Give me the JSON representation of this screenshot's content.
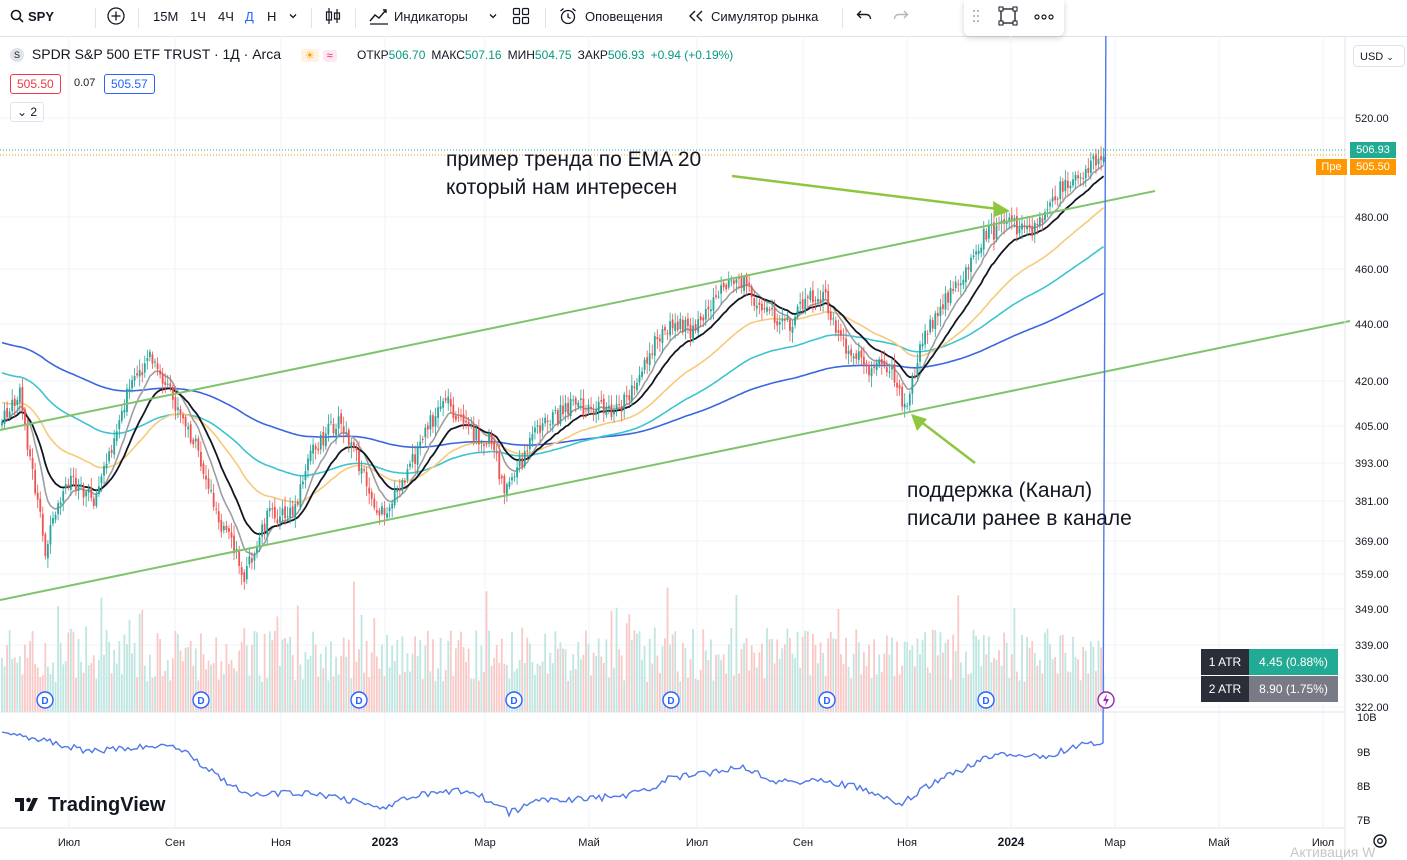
{
  "toolbar": {
    "symbol": "SPY",
    "intervals": [
      "15M",
      "1Ч",
      "4Ч",
      "Д",
      "Н"
    ],
    "active_interval": "Д",
    "indicators_label": "Индикаторы",
    "alerts_label": "Оповещения",
    "replay_label": "Симулятор рынка"
  },
  "legend": {
    "title": "SPDR S&P 500 ETF TRUST · 1Д · Arca",
    "open_label": "ОТКР",
    "open": "506.70",
    "high_label": "МАКС",
    "high": "507.16",
    "low_label": "МИН",
    "low": "504.75",
    "close_label": "ЗАКР",
    "close": "506.93",
    "change": "+0.94 (+0.19%)",
    "bid": "505.50",
    "spread": "0.07",
    "ask": "505.57",
    "indicators_count": "2"
  },
  "currency": "USD",
  "price_badges": {
    "last": "506.93",
    "pre_label": "Пре",
    "pre": "505.50"
  },
  "annotations": {
    "trend_line1": "пример тренда по EMA 20",
    "trend_line2": "который нам интересен",
    "support_line1": "поддержка (Канал)",
    "support_line2": "писали ранее в канале"
  },
  "atr": [
    {
      "label": "1 ATR",
      "value": "4.45 (0.88%)",
      "color": "#22ab94"
    },
    {
      "label": "2 ATR",
      "value": "8.90 (1.75%)",
      "color": "#787b86"
    }
  ],
  "dividend_marker": "D",
  "branding": "TradingView",
  "watermark": "Активация W",
  "chart_data": {
    "type": "candlestick",
    "title": "SPDR S&P 500 ETF TRUST · 1Д · Arca",
    "price_ticks": [
      "520.00",
      "480.00",
      "460.00",
      "440.00",
      "420.00",
      "405.00",
      "393.00",
      "381.00",
      "369.00",
      "359.00",
      "349.00",
      "339.00",
      "330.00",
      "322.00"
    ],
    "x_ticks": [
      "Июл",
      "Сен",
      "Ноя",
      "2023",
      "Мар",
      "Май",
      "Июл",
      "Сен",
      "Ноя",
      "2024",
      "Мар",
      "Май",
      "Июл"
    ],
    "lower_pane_ticks": [
      "10B",
      "9B",
      "8B",
      "7B"
    ],
    "close_path": [
      [
        "2022-06",
        380
      ],
      [
        "2022-06",
        365
      ],
      [
        "2022-07",
        395
      ],
      [
        "2022-08",
        428
      ],
      [
        "2022-09",
        392
      ],
      [
        "2022-10",
        362
      ],
      [
        "2022-11",
        398
      ],
      [
        "2022-12",
        384
      ],
      [
        "2023-02",
        412
      ],
      [
        "2023-03",
        388
      ],
      [
        "2023-04",
        413
      ],
      [
        "2023-05",
        418
      ],
      [
        "2023-06",
        440
      ],
      [
        "2023-07",
        456
      ],
      [
        "2023-08",
        443
      ],
      [
        "2023-09",
        448
      ],
      [
        "2023-10",
        420
      ],
      [
        "2023-11",
        455
      ],
      [
        "2023-12",
        475
      ],
      [
        "2024-01",
        488
      ],
      [
        "2024-02",
        500
      ],
      [
        "2024-02",
        506.93
      ]
    ],
    "ema_series": [
      {
        "name": "EMA 20",
        "color": "#131722"
      },
      {
        "name": "EMA 10",
        "color": "#9e9e9e"
      },
      {
        "name": "EMA 50",
        "color": "#f7c97a"
      },
      {
        "name": "EMA 100",
        "color": "#3cc4cf"
      },
      {
        "name": "EMA 200",
        "color": "#3a66e0"
      }
    ],
    "channel": {
      "color": "#7fc36b"
    },
    "last_price": 506.93,
    "premarket_price": 505.5
  }
}
